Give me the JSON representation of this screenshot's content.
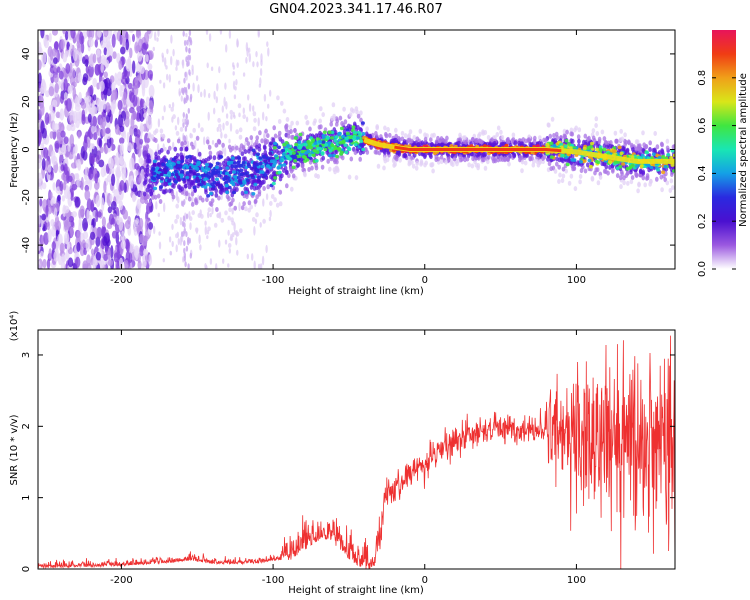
{
  "title": "GN04.2023.341.17.46.R07",
  "chart_data": [
    {
      "type": "heatmap",
      "title": "GN04.2023.341.17.46.R07",
      "xlabel": "Height of straight line (km)",
      "ylabel": "Frequency (Hz)",
      "xlim": [
        -255,
        165
      ],
      "ylim": [
        -50,
        50
      ],
      "xticks": [
        -200,
        -100,
        0,
        100
      ],
      "yticks": [
        -40,
        -20,
        0,
        20,
        40
      ],
      "colorbar": {
        "label": "Normalized spectral amplitude",
        "range": [
          0,
          1
        ],
        "ticks": [
          "0.0",
          "0.2",
          "0.4",
          "0.6",
          "0.8"
        ],
        "colormap": [
          "#ffffff",
          "#d9c2f2",
          "#9b59e0",
          "#5a17d9",
          "#2a2ae0",
          "#14a0e6",
          "#19e6b4",
          "#40e640",
          "#d9e619",
          "#f0a019",
          "#f03c14",
          "#e8145a"
        ]
      },
      "ridge_center": {
        "x": [
          -180,
          -160,
          -140,
          -120,
          -100,
          -80,
          -60,
          -45,
          -30,
          -10,
          0,
          40,
          80,
          100,
          120,
          140,
          160
        ],
        "y": [
          -10,
          -8,
          -11,
          -10,
          -5,
          0,
          3,
          5,
          2,
          0,
          0,
          0,
          0,
          -1,
          -3,
          -5,
          -5
        ]
      }
    },
    {
      "type": "line",
      "xlabel": "Height of straight line (km)",
      "ylabel": "SNR (10 * v/v)",
      "yscale_label": "(x10⁴)",
      "xlim": [
        -255,
        165
      ],
      "ylim": [
        0,
        3.35
      ],
      "xticks": [
        -200,
        -100,
        0,
        100
      ],
      "yticks": [
        0,
        1,
        2,
        3
      ],
      "series": [
        {
          "color": "#ee3030",
          "x": [
            -255,
            -200,
            -170,
            -155,
            -140,
            -120,
            -105,
            -90,
            -80,
            -70,
            -62,
            -55,
            -48,
            -40,
            -34,
            -30,
            -27,
            -25,
            -20,
            -10,
            0,
            10,
            20,
            30,
            40,
            50,
            60,
            70,
            80,
            90,
            95,
            100,
            110,
            120,
            130,
            140,
            150,
            160,
            165
          ],
          "y": [
            0.01,
            0.04,
            0.08,
            0.12,
            0.07,
            0.07,
            0.09,
            0.15,
            0.3,
            0.45,
            0.45,
            0.28,
            0.15,
            0.05,
            0.03,
            0.35,
            0.9,
            1.05,
            1.05,
            1.35,
            1.48,
            1.65,
            1.8,
            1.9,
            1.95,
            1.97,
            1.95,
            1.98,
            1.95,
            1.92,
            1.9,
            1.85,
            1.82,
            1.8,
            1.82,
            1.75,
            1.72,
            1.7,
            1.75
          ]
        }
      ]
    }
  ]
}
